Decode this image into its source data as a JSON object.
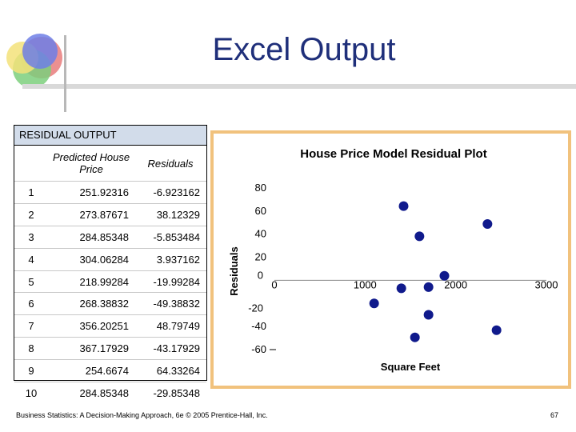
{
  "slide": {
    "title": "Excel Output",
    "footer": "Business Statistics: A Decision-Making Approach, 6e © 2005 Prentice-Hall, Inc.",
    "page_number": "67"
  },
  "table": {
    "header": "RESIDUAL OUTPUT",
    "columns": [
      "",
      "Predicted House Price",
      "Residuals"
    ],
    "rows": [
      [
        "1",
        "251.92316",
        "-6.923162"
      ],
      [
        "2",
        "273.87671",
        "38.12329"
      ],
      [
        "3",
        "284.85348",
        "-5.853484"
      ],
      [
        "4",
        "304.06284",
        "3.937162"
      ],
      [
        "5",
        "218.99284",
        "-19.99284"
      ],
      [
        "6",
        "268.38832",
        "-49.38832"
      ],
      [
        "7",
        "356.20251",
        "48.79749"
      ],
      [
        "8",
        "367.17929",
        "-43.17929"
      ],
      [
        "9",
        "254.6674",
        "64.33264"
      ],
      [
        "10",
        "284.85348",
        "-29.85348"
      ]
    ]
  },
  "chart_data": {
    "type": "scatter",
    "title": "House Price Model Residual Plot",
    "xlabel": "Square Feet",
    "ylabel": "Residuals",
    "xlim": [
      0,
      3000
    ],
    "ylim": [
      -60,
      80
    ],
    "xticks": [
      "0",
      "1000",
      "2000",
      "3000"
    ],
    "yticks": [
      "80",
      "60",
      "40",
      "20",
      "0",
      "-20",
      "-40",
      "-60"
    ],
    "point_color": "#101a8c",
    "x": [
      1400,
      1600,
      1700,
      1875,
      1100,
      1550,
      2350,
      2450,
      1425,
      1700
    ],
    "y": [
      -6.923162,
      38.12329,
      -5.853484,
      3.937162,
      -19.99284,
      -49.38832,
      48.79749,
      -43.17929,
      64.33264,
      -29.85348
    ]
  }
}
